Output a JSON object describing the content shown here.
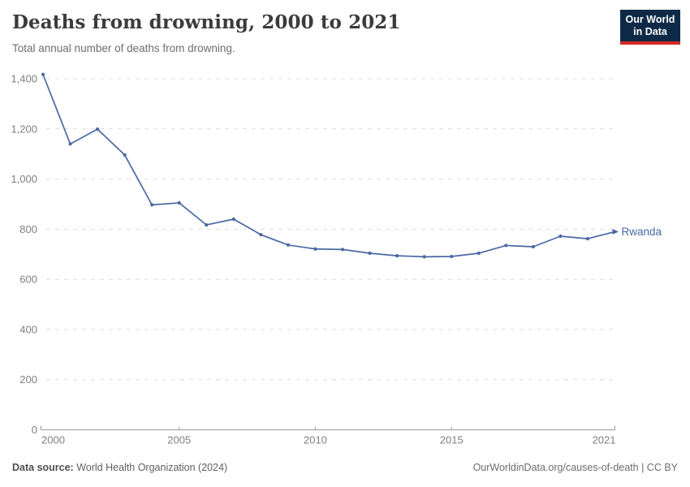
{
  "header": {
    "title": "Deaths from drowning, 2000 to 2021",
    "subtitle": "Total annual number of deaths from drowning.",
    "logo": {
      "line1": "Our World",
      "line2": "in Data",
      "bg_color": "#0e2a47",
      "accent_color": "#d32a23"
    }
  },
  "chart_data": {
    "type": "line",
    "title": "Deaths from drowning, 2000 to 2021",
    "xlabel": "",
    "ylabel": "",
    "xlim": [
      2000,
      2021
    ],
    "ylim": [
      0,
      1400
    ],
    "grid": "horizontal-dashed",
    "legend_position": "end-of-line-label",
    "x_ticks": [
      2000,
      2005,
      2010,
      2015,
      2021
    ],
    "y_ticks": [
      0,
      200,
      400,
      600,
      800,
      1000,
      1200,
      1400
    ],
    "x": [
      2000,
      2001,
      2002,
      2003,
      2004,
      2005,
      2006,
      2007,
      2008,
      2009,
      2010,
      2011,
      2012,
      2013,
      2014,
      2015,
      2016,
      2017,
      2018,
      2019,
      2020,
      2021
    ],
    "series": [
      {
        "name": "Rwanda",
        "color": "#4a69a3",
        "values": [
          1417,
          1140,
          1199,
          1096,
          897,
          905,
          817,
          840,
          778,
          737,
          721,
          719,
          704,
          694,
          690,
          691,
          704,
          735,
          730,
          772,
          762,
          790
        ]
      }
    ],
    "colors": {
      "gridline": "#dcdcdc",
      "axis": "#a5a5a5",
      "tick_label": "#7f7f7f"
    }
  },
  "footer": {
    "source_label": "Data source:",
    "source_value": "World Health Organization (2024)",
    "credit": "OurWorldinData.org/causes-of-death | CC BY"
  }
}
